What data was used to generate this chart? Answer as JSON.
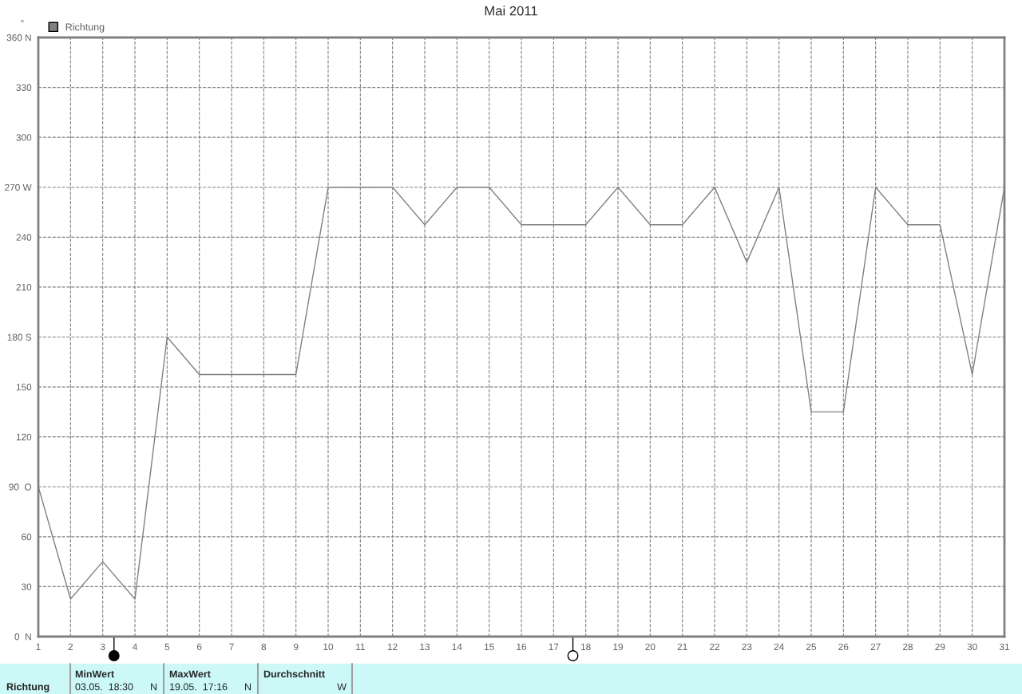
{
  "chart_data": {
    "type": "line",
    "title": "Mai 2011",
    "ylabel": "°",
    "x": [
      1,
      2,
      3,
      4,
      5,
      6,
      7,
      8,
      9,
      10,
      11,
      12,
      13,
      14,
      15,
      16,
      17,
      18,
      19,
      20,
      21,
      22,
      23,
      24,
      25,
      26,
      27,
      28,
      29,
      30,
      31
    ],
    "series": [
      {
        "name": "Richtung",
        "color": "#808080",
        "values": [
          90,
          22.5,
          45,
          22.5,
          180,
          157.5,
          157.5,
          157.5,
          157.5,
          270,
          270,
          270,
          247.5,
          270,
          270,
          247.5,
          247.5,
          247.5,
          270,
          247.5,
          247.5,
          270,
          225,
          270,
          135,
          135,
          270,
          247.5,
          247.5,
          157.5,
          270
        ]
      }
    ],
    "xlim": [
      1,
      31
    ],
    "xticks": [
      1,
      2,
      3,
      4,
      5,
      6,
      7,
      8,
      9,
      10,
      11,
      12,
      13,
      14,
      15,
      16,
      17,
      18,
      19,
      20,
      21,
      22,
      23,
      24,
      25,
      26,
      27,
      28,
      29,
      30,
      31
    ],
    "ylim": [
      0,
      360
    ],
    "yticks": [
      {
        "value": 0,
        "label": "0  N"
      },
      30,
      60,
      {
        "value": 90,
        "label": "90  O"
      },
      120,
      150,
      {
        "value": 180,
        "label": "180 S"
      },
      210,
      240,
      {
        "value": 270,
        "label": "270 W"
      },
      300,
      330,
      {
        "value": 360,
        "label": "360 N"
      }
    ],
    "grid": true,
    "legend": "top left",
    "line_style": "solid",
    "marker": "none",
    "annotations": [
      "Richtung",
      "MinWert",
      "03.05.  18:30",
      "N",
      "MaxWert",
      "19.05.  17:16",
      "N",
      "Durchschnitt",
      "W"
    ]
  }
}
